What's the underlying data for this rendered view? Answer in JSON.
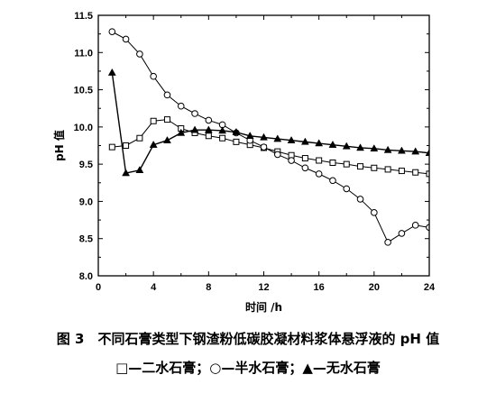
{
  "chart_data": {
    "type": "line",
    "xlabel": "时间 /h",
    "ylabel": "pH 值",
    "xlim": [
      0,
      24
    ],
    "ylim": [
      8.0,
      11.5
    ],
    "x_ticks": [
      "0",
      "4",
      "8",
      "12",
      "16",
      "20",
      "24"
    ],
    "y_ticks": [
      "8.0",
      "8.5",
      "9.0",
      "9.5",
      "10.0",
      "10.5",
      "11.0",
      "11.5"
    ],
    "grid": false,
    "legend": "caption-below",
    "series": [
      {
        "name": "二水石膏",
        "marker": "open-square",
        "x": [
          1,
          2,
          3,
          4,
          5,
          6,
          7,
          8,
          9,
          10,
          11,
          12,
          13,
          14,
          15,
          16,
          17,
          18,
          19,
          20,
          21,
          22,
          23,
          24
        ],
        "y": [
          9.73,
          9.75,
          9.85,
          10.08,
          10.1,
          9.98,
          9.92,
          9.88,
          9.85,
          9.8,
          9.76,
          9.72,
          9.67,
          9.62,
          9.58,
          9.55,
          9.52,
          9.5,
          9.47,
          9.45,
          9.43,
          9.41,
          9.39,
          9.37
        ]
      },
      {
        "name": "半水石膏",
        "marker": "open-circle",
        "x": [
          1,
          2,
          3,
          4,
          5,
          6,
          7,
          8,
          9,
          10,
          11,
          12,
          13,
          14,
          15,
          16,
          17,
          18,
          19,
          20,
          21,
          22,
          23,
          24
        ],
        "y": [
          11.28,
          11.18,
          10.98,
          10.68,
          10.43,
          10.28,
          10.18,
          10.09,
          10.03,
          9.92,
          9.82,
          9.73,
          9.63,
          9.55,
          9.45,
          9.37,
          9.28,
          9.17,
          9.03,
          8.85,
          8.45,
          8.57,
          8.68,
          8.65
        ]
      },
      {
        "name": "无水石膏",
        "marker": "filled-triangle",
        "x": [
          1,
          2,
          3,
          4,
          5,
          6,
          7,
          8,
          9,
          10,
          11,
          12,
          13,
          14,
          15,
          16,
          17,
          18,
          19,
          20,
          21,
          22,
          23,
          24
        ],
        "y": [
          10.73,
          9.38,
          9.42,
          9.76,
          9.82,
          9.92,
          9.96,
          9.96,
          9.95,
          9.93,
          9.88,
          9.86,
          9.84,
          9.82,
          9.8,
          9.78,
          9.76,
          9.74,
          9.72,
          9.71,
          9.69,
          9.68,
          9.67,
          9.65
        ]
      }
    ]
  },
  "caption": {
    "line1": "图 3　不同石膏类型下钢渣粉低碳胶凝材料浆体悬浮液的 pH 值",
    "legend_items": [
      {
        "symbol": "□",
        "label": "—二水石膏；"
      },
      {
        "symbol": "○",
        "label": "—半水石膏；"
      },
      {
        "symbol": "▲",
        "label": "—无水石膏"
      }
    ]
  }
}
